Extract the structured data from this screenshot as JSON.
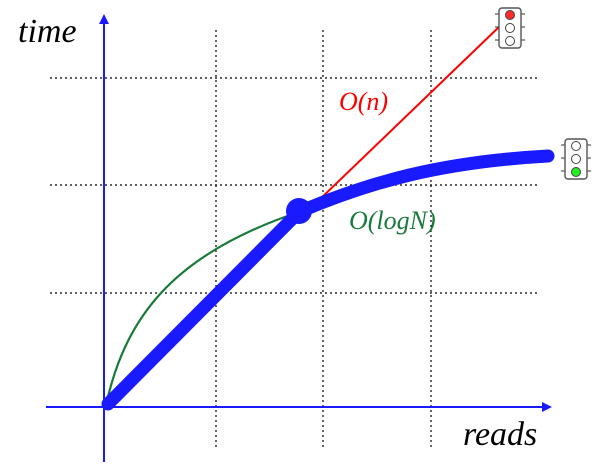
{
  "labels": {
    "y_axis": "time",
    "x_axis": "reads",
    "linear_curve": "O(n)",
    "log_curve": "O(logN)"
  },
  "colors": {
    "axis": "#1a1aff",
    "grid": "#000000",
    "linear_curve": "#ff0000",
    "log_curve": "#1a7a3a",
    "hybrid_curve": "#1a1aff",
    "light_red": "#ff2a2a",
    "light_green": "#22ee22",
    "light_off": "#ffffff"
  },
  "traffic_lights": {
    "linear_curve": {
      "icon": "traffic-light-icon",
      "lit": "red"
    },
    "hybrid_curve": {
      "icon": "traffic-light-icon",
      "lit": "green"
    }
  }
}
